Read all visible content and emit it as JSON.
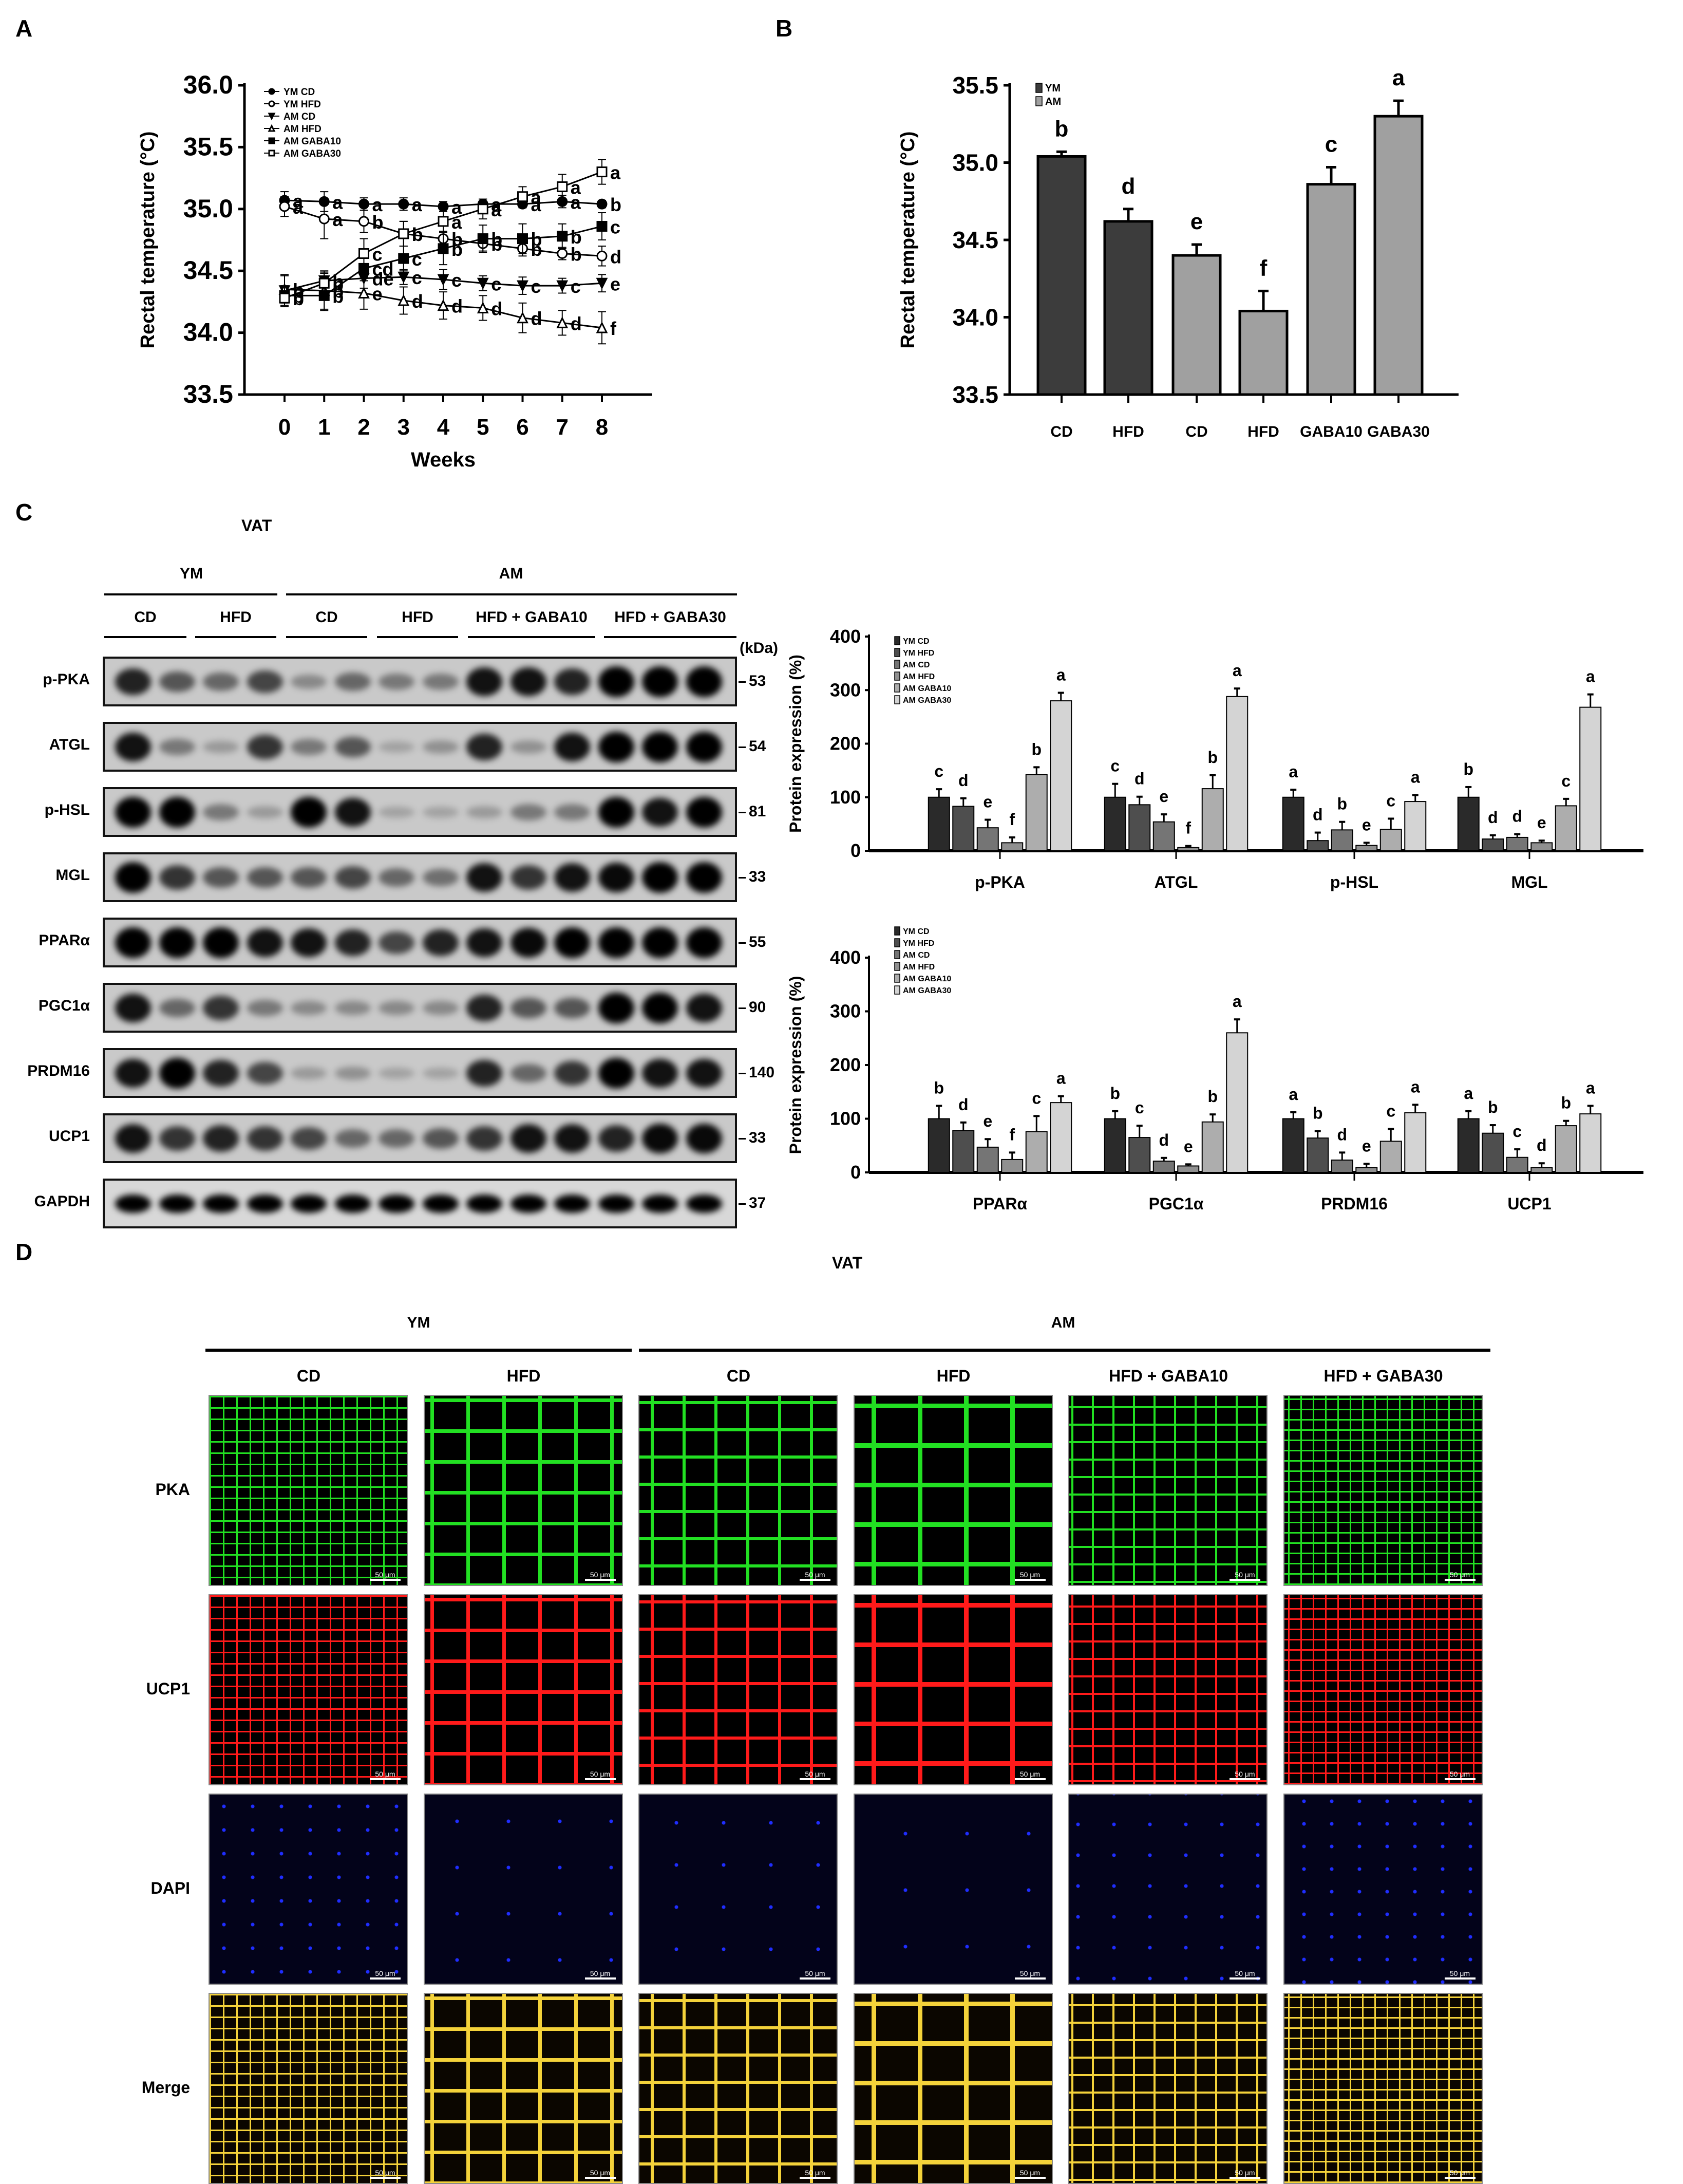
{
  "panels": {
    "A": {
      "label": "A"
    },
    "B": {
      "label": "B"
    },
    "C": {
      "label": "C",
      "title": "VAT"
    },
    "D": {
      "label": "D",
      "title": "VAT"
    }
  },
  "chart_data": [
    {
      "id": "A",
      "type": "line",
      "title": "",
      "xlabel": "Weeks",
      "ylabel": "Rectal temperature (°C)",
      "ylim": [
        33.5,
        36.0
      ],
      "yticks": [
        "33.5",
        "34.0",
        "34.5",
        "35.0",
        "35.5",
        "36.0"
      ],
      "x": [
        0,
        1,
        2,
        3,
        4,
        5,
        6,
        7,
        8
      ],
      "legend_position": "upper-left",
      "series": [
        {
          "name": "YM CD",
          "marker": "filled-circle",
          "values": [
            35.07,
            35.06,
            35.04,
            35.04,
            35.02,
            35.04,
            35.04,
            35.06,
            35.04
          ],
          "errors": [
            0.07,
            0.08,
            0.05,
            0.05,
            0.04,
            0.04,
            0.03,
            0.05,
            0.03
          ],
          "letters": [
            "a",
            "a",
            "a",
            "a",
            "a",
            "a",
            "a",
            "a",
            "b"
          ]
        },
        {
          "name": "YM HFD",
          "marker": "open-circle",
          "values": [
            35.02,
            34.92,
            34.9,
            34.8,
            34.76,
            34.72,
            34.68,
            34.64,
            34.62
          ],
          "errors": [
            0.08,
            0.16,
            0.09,
            0.1,
            0.06,
            0.06,
            0.06,
            0.05,
            0.08
          ],
          "letters": [
            "a",
            "a",
            "b",
            "b",
            "b",
            "b",
            "b",
            "b",
            "d"
          ]
        },
        {
          "name": "AM CD",
          "marker": "filled-triangle-down",
          "values": [
            34.34,
            34.42,
            34.44,
            34.45,
            34.43,
            34.4,
            34.38,
            34.38,
            34.4
          ],
          "errors": [
            0.13,
            0.08,
            0.08,
            0.06,
            0.08,
            0.06,
            0.07,
            0.06,
            0.07
          ],
          "letters": [
            "b",
            "b",
            "de",
            "c",
            "c",
            "c",
            "c",
            "c",
            "e"
          ]
        },
        {
          "name": "AM HFD",
          "marker": "open-triangle-up",
          "values": [
            34.35,
            34.34,
            34.32,
            34.26,
            34.22,
            34.2,
            34.12,
            34.08,
            34.04
          ],
          "errors": [
            0.11,
            0.15,
            0.13,
            0.11,
            0.11,
            0.1,
            0.12,
            0.1,
            0.13
          ],
          "letters": [
            "b",
            "b",
            "e",
            "d",
            "d",
            "d",
            "d",
            "d",
            "f"
          ]
        },
        {
          "name": "AM GABA10",
          "marker": "filled-square",
          "values": [
            34.3,
            34.3,
            34.52,
            34.6,
            34.68,
            34.76,
            34.76,
            34.78,
            34.86
          ],
          "errors": [
            0.08,
            0.12,
            0.1,
            0.1,
            0.13,
            0.11,
            0.12,
            0.1,
            0.11
          ],
          "letters": [
            "b",
            "b",
            "cd",
            "c",
            "b",
            "b",
            "b",
            "b",
            "c"
          ]
        },
        {
          "name": "AM GABA30",
          "marker": "open-square",
          "values": [
            34.28,
            34.4,
            34.64,
            34.8,
            34.9,
            35.0,
            35.1,
            35.18,
            35.3
          ],
          "errors": [
            0.06,
            0.08,
            0.12,
            0.1,
            0.08,
            0.08,
            0.08,
            0.1,
            0.1
          ],
          "letters": [
            "b",
            "b",
            "c",
            "b",
            "a",
            "a",
            "a",
            "a",
            "a"
          ]
        }
      ]
    },
    {
      "id": "B",
      "type": "bar",
      "title": "",
      "xlabel": "",
      "ylabel": "Rectal temperature (°C)",
      "ylim": [
        33.5,
        35.5
      ],
      "yticks": [
        "33.5",
        "34.0",
        "34.5",
        "35.0",
        "35.5"
      ],
      "categories": [
        "CD",
        "HFD",
        "CD",
        "HFD",
        "GABA10",
        "GABA30"
      ],
      "groups": [
        "YM",
        "YM",
        "AM",
        "AM",
        "AM",
        "AM"
      ],
      "values": [
        35.04,
        34.62,
        34.4,
        34.04,
        34.86,
        35.3
      ],
      "errors": [
        0.03,
        0.08,
        0.07,
        0.13,
        0.11,
        0.1
      ],
      "letters": [
        "b",
        "d",
        "e",
        "f",
        "c",
        "a"
      ],
      "legend": [
        {
          "name": "YM",
          "color": "#3c3c3c"
        },
        {
          "name": "AM",
          "color": "#a0a0a0"
        }
      ],
      "legend_position": "upper-left"
    },
    {
      "id": "C-top",
      "type": "bar",
      "ylabel": "Protein expression (%)",
      "ylim": [
        0,
        400
      ],
      "yticks": [
        "0",
        "100",
        "200",
        "300",
        "400"
      ],
      "categories": [
        "p-PKA",
        "ATGL",
        "p-HSL",
        "MGL"
      ],
      "series": [
        {
          "name": "YM CD",
          "color": "#2a2a2a",
          "values": [
            100,
            100,
            100,
            100
          ],
          "errors": [
            15,
            25,
            14,
            19
          ],
          "letters": [
            "c",
            "c",
            "a",
            "b"
          ]
        },
        {
          "name": "YM HFD",
          "color": "#4e4e4e",
          "values": [
            83,
            86,
            19,
            22
          ],
          "errors": [
            15,
            15,
            15,
            7
          ],
          "letters": [
            "d",
            "d",
            "d",
            "d"
          ]
        },
        {
          "name": "AM CD",
          "color": "#757575",
          "values": [
            43,
            54,
            39,
            25
          ],
          "errors": [
            15,
            14,
            15,
            6
          ],
          "letters": [
            "e",
            "e",
            "b",
            "d"
          ]
        },
        {
          "name": "AM HFD",
          "color": "#909090",
          "values": [
            15,
            6,
            10,
            15
          ],
          "errors": [
            10,
            3,
            5,
            4
          ],
          "letters": [
            "f",
            "f",
            "e",
            "e"
          ]
        },
        {
          "name": "AM GABA10",
          "color": "#adadad",
          "values": [
            142,
            116,
            40,
            84
          ],
          "errors": [
            14,
            25,
            20,
            13
          ],
          "letters": [
            "b",
            "b",
            "c",
            "c"
          ]
        },
        {
          "name": "AM GABA30",
          "color": "#d4d4d4",
          "values": [
            280,
            288,
            92,
            268
          ],
          "errors": [
            15,
            15,
            12,
            24
          ],
          "letters": [
            "a",
            "a",
            "a",
            "a"
          ]
        }
      ],
      "legend_position": "upper-left"
    },
    {
      "id": "C-bottom",
      "type": "bar",
      "ylabel": "Protein expression (%)",
      "ylim": [
        0,
        400
      ],
      "yticks": [
        "0",
        "100",
        "200",
        "300",
        "400"
      ],
      "categories": [
        "PPARα",
        "PGC1α",
        "PRDM16",
        "UCP1"
      ],
      "series": [
        {
          "name": "YM CD",
          "color": "#2a2a2a",
          "values": [
            100,
            100,
            100,
            100
          ],
          "errors": [
            24,
            14,
            12,
            14
          ],
          "letters": [
            "b",
            "b",
            "a",
            "a"
          ]
        },
        {
          "name": "YM HFD",
          "color": "#4e4e4e",
          "values": [
            78,
            65,
            64,
            73
          ],
          "errors": [
            15,
            22,
            13,
            15
          ],
          "letters": [
            "d",
            "c",
            "b",
            "b"
          ]
        },
        {
          "name": "AM CD",
          "color": "#757575",
          "values": [
            47,
            21,
            23,
            28
          ],
          "errors": [
            15,
            6,
            14,
            15
          ],
          "letters": [
            "e",
            "d",
            "d",
            "c"
          ]
        },
        {
          "name": "AM HFD",
          "color": "#909090",
          "values": [
            24,
            12,
            9,
            9
          ],
          "errors": [
            13,
            3,
            7,
            8
          ],
          "letters": [
            "f",
            "e",
            "e",
            "d"
          ]
        },
        {
          "name": "AM GABA10",
          "color": "#adadad",
          "values": [
            76,
            94,
            58,
            87
          ],
          "errors": [
            29,
            14,
            23,
            9
          ],
          "letters": [
            "c",
            "b",
            "c",
            "b"
          ]
        },
        {
          "name": "AM GABA30",
          "color": "#d4d4d4",
          "values": [
            130,
            260,
            111,
            109
          ],
          "errors": [
            12,
            25,
            15,
            15
          ],
          "letters": [
            "a",
            "a",
            "a",
            "a"
          ]
        }
      ],
      "legend_position": "upper-left"
    }
  ],
  "blot": {
    "tissue": "VAT",
    "top_groups": [
      {
        "label": "YM"
      },
      {
        "label": "AM"
      }
    ],
    "sub_groups": [
      "CD",
      "HFD",
      "CD",
      "HFD",
      "HFD + GABA10",
      "HFD + GABA30"
    ],
    "kda_header": "(kDa)",
    "rows": [
      {
        "protein": "p-PKA",
        "kda": "53"
      },
      {
        "protein": "ATGL",
        "kda": "54"
      },
      {
        "protein": "p-HSL",
        "kda": "81"
      },
      {
        "protein": "MGL",
        "kda": "33"
      },
      {
        "protein": "PPARα",
        "kda": "55"
      },
      {
        "protein": "PGC1α",
        "kda": "90"
      },
      {
        "protein": "PRDM16",
        "kda": "140"
      },
      {
        "protein": "UCP1",
        "kda": "33"
      },
      {
        "protein": "GAPDH",
        "kda": "37"
      }
    ]
  },
  "if": {
    "tissue": "VAT",
    "top_groups": [
      {
        "label": "YM"
      },
      {
        "label": "AM"
      }
    ],
    "columns": [
      "CD",
      "HFD",
      "CD",
      "HFD",
      "HFD + GABA10",
      "HFD + GABA30"
    ],
    "rows": [
      "PKA",
      "UCP1",
      "DAPI",
      "Merge"
    ],
    "scale_bar": "50 μm",
    "colors": {
      "PKA": "#22e022",
      "UCP1": "#ff1a1a",
      "DAPI": "#1f2dff",
      "Merge": "#f4d23a"
    }
  }
}
